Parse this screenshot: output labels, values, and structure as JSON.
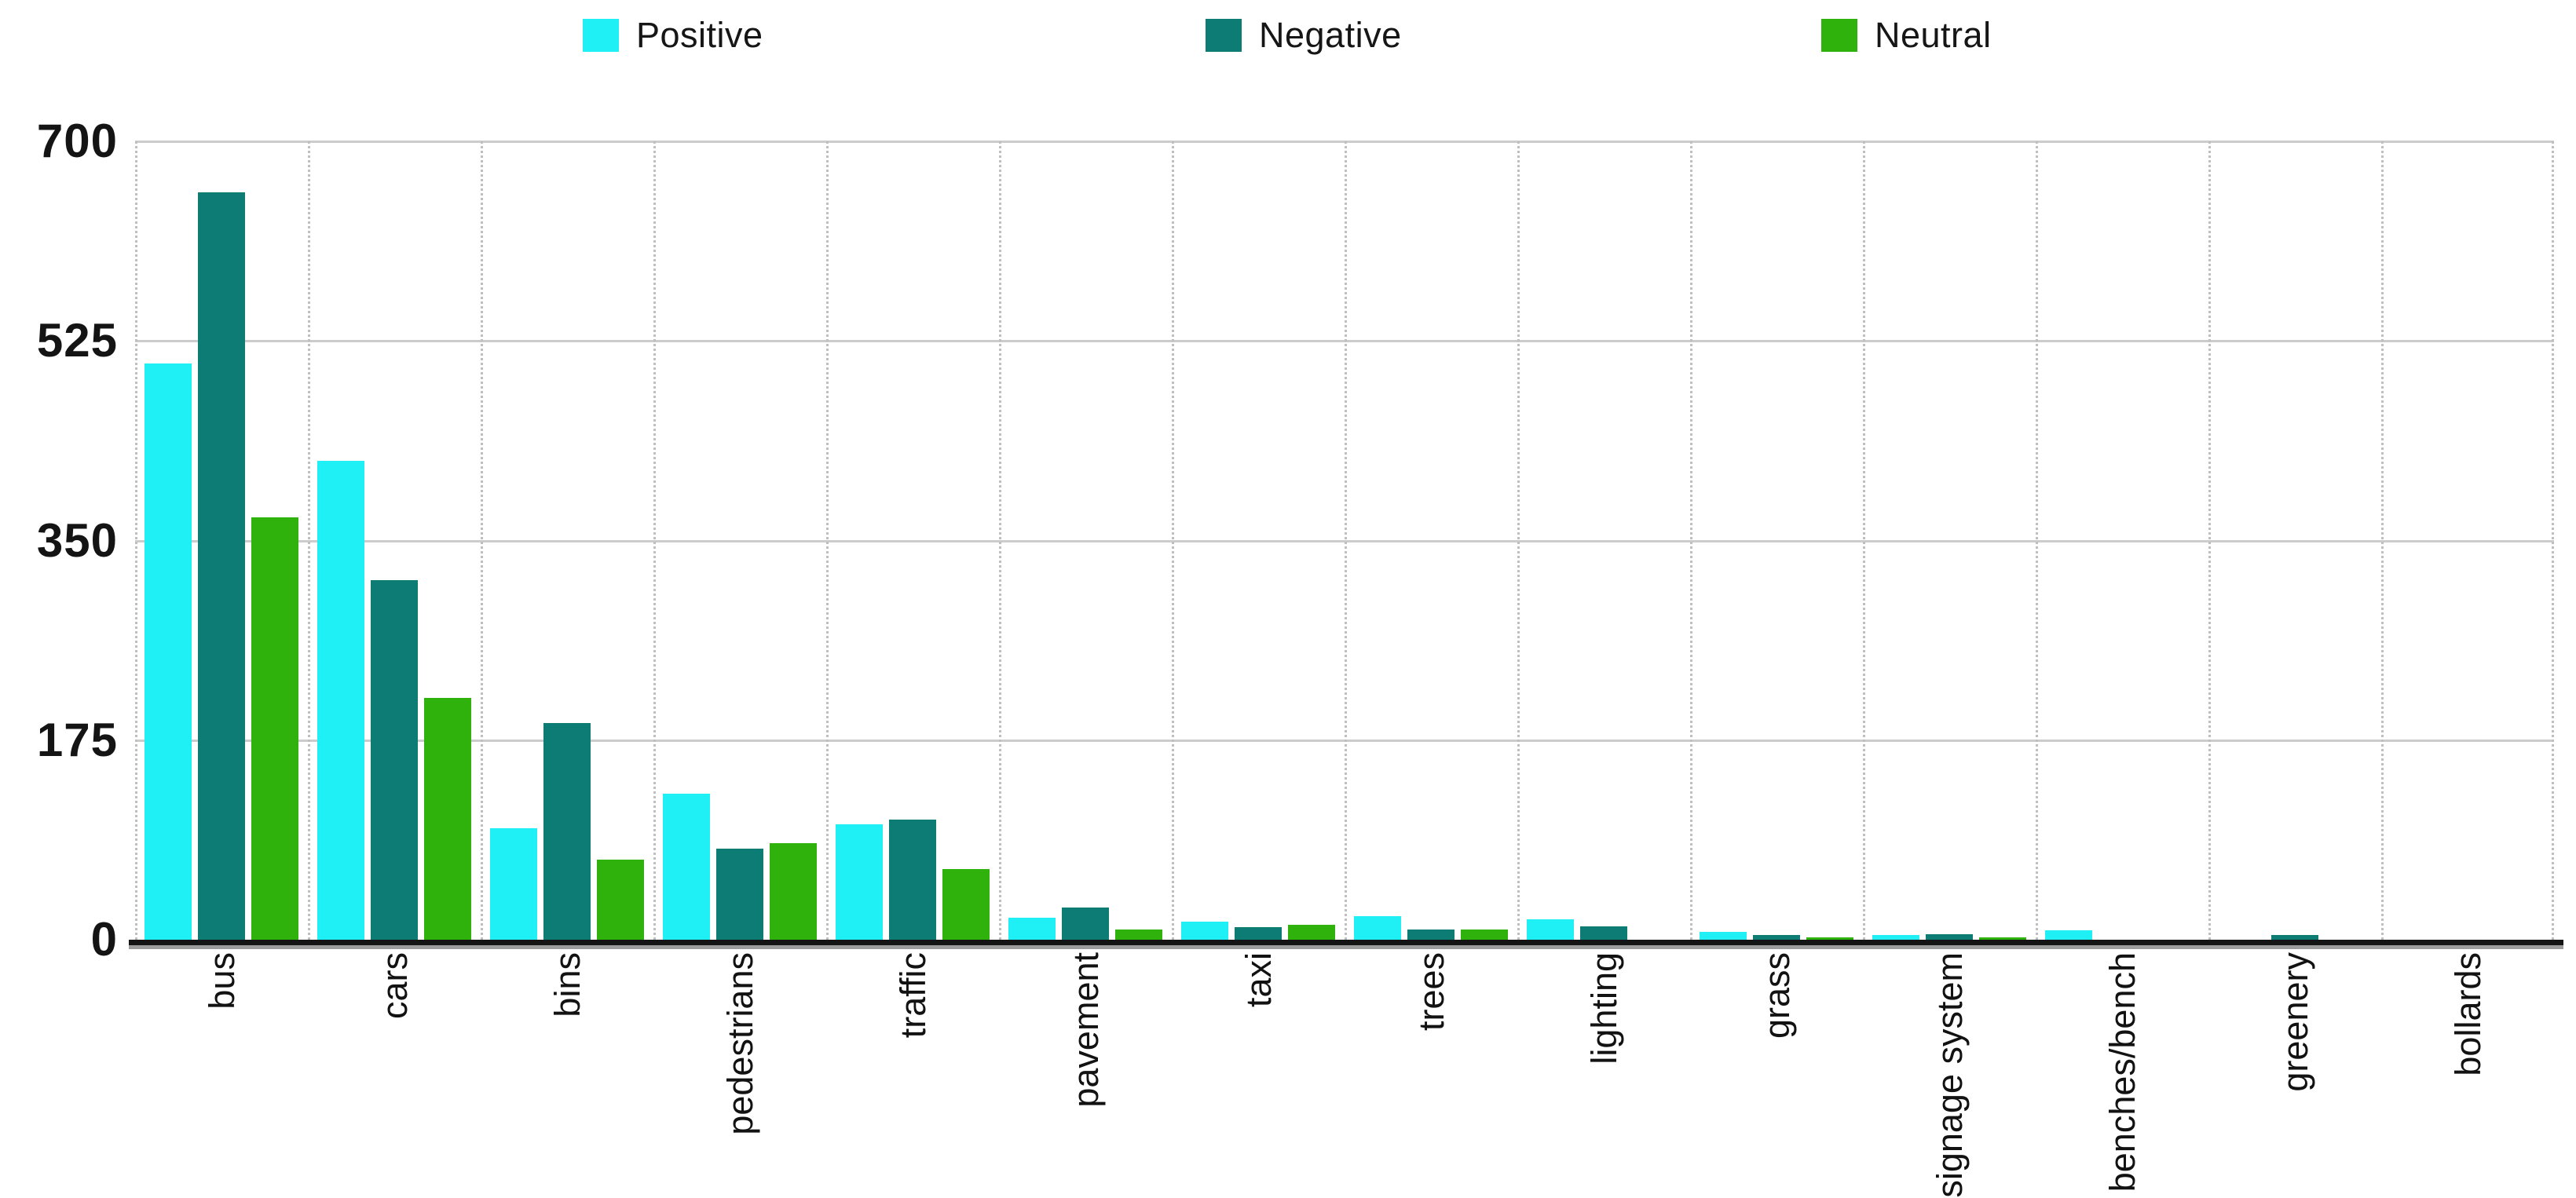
{
  "legend": {
    "items": [
      {
        "label": "Positive",
        "color": "#1EF0F5",
        "x": 742
      },
      {
        "label": "Negative",
        "color": "#0D7C75",
        "x": 1535
      },
      {
        "label": "Neutral",
        "color": "#2FB20B",
        "x": 2319
      }
    ]
  },
  "y_axis": {
    "ticks": [
      700,
      525,
      350,
      175,
      0
    ],
    "max": 700
  },
  "chart_data": {
    "type": "bar",
    "title": "",
    "xlabel": "",
    "ylabel": "",
    "ylim": [
      0,
      700
    ],
    "grid": "horizontal solid gridlines, dotted vertical group separators",
    "legend_position": "top",
    "categories": [
      "bus",
      "cars",
      "bins",
      "pedestrians",
      "traffic",
      "pavement",
      "taxi",
      "trees",
      "lighting",
      "grass",
      "signage system",
      "benches/bench",
      "greenery",
      "bollards"
    ],
    "series": [
      {
        "name": "Positive",
        "color": "#1EF0F5",
        "values": [
          505,
          420,
          98,
          128,
          101,
          19,
          16,
          21,
          18,
          7,
          4,
          8,
          0,
          0
        ]
      },
      {
        "name": "Negative",
        "color": "#0D7C75",
        "values": [
          655,
          315,
          190,
          80,
          105,
          28,
          11,
          9,
          12,
          4,
          5,
          0,
          4,
          0
        ]
      },
      {
        "name": "Neutral",
        "color": "#2FB20B",
        "values": [
          370,
          212,
          70,
          85,
          62,
          9,
          13,
          9,
          0,
          2,
          2,
          0,
          0,
          0
        ]
      }
    ]
  }
}
